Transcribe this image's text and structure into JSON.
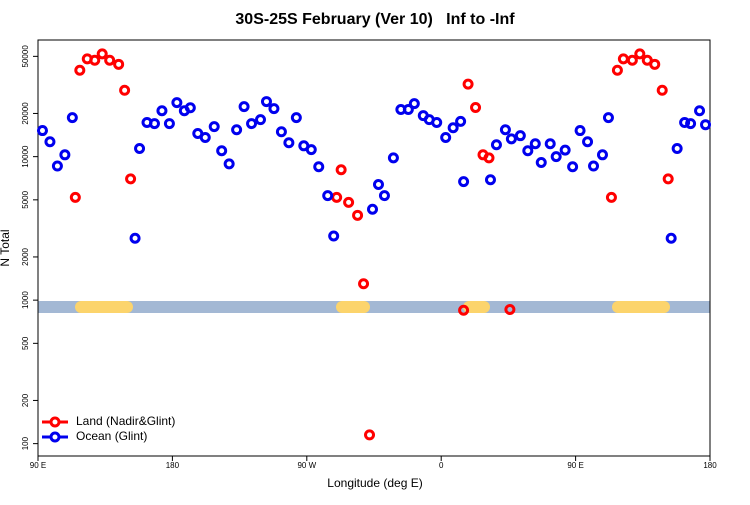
{
  "chart_data": {
    "type": "scatter",
    "title": "30S-25S February (Ver 10)   Inf to -Inf",
    "x_label": "Longitude (deg E)",
    "y_label": "N Total",
    "log_y": true,
    "legend": "bottom-left",
    "xlim": [
      90,
      540
    ],
    "ylim": [
      82,
      65000
    ],
    "xticks": [
      {
        "value": 90,
        "label": "90 E"
      },
      180,
      {
        "value": 270,
        "label": "90 W"
      },
      {
        "value": 360,
        "label": "0"
      },
      {
        "value": 450,
        "label": "90 E"
      },
      {
        "value": 540,
        "label": "180"
      }
    ],
    "yticks": [
      100,
      200,
      500,
      1000,
      2000,
      5000,
      10000,
      20000,
      50000
    ],
    "series": [
      {
        "name": "Land (Nadir&Glint)",
        "color": "#ff0000",
        "x": [
          115,
          118,
          123,
          128,
          133,
          138,
          144,
          148,
          152,
          290,
          293,
          298,
          304,
          308,
          312,
          375,
          378,
          383,
          388,
          392,
          406,
          474,
          478,
          482,
          488,
          493,
          498,
          503,
          508,
          512
        ],
        "values": [
          5200,
          40000,
          48000,
          47000,
          52000,
          47000,
          44000,
          29000,
          7000,
          5200,
          8100,
          4800,
          3900,
          1300,
          115,
          850,
          32000,
          22000,
          10300,
          9800,
          860,
          5200,
          40000,
          48000,
          47000,
          52000,
          47000,
          44000,
          29000,
          7000
        ]
      },
      {
        "name": "Ocean (Glint)",
        "color": "#0000ee",
        "x": [
          93,
          98,
          103,
          108,
          113,
          155,
          158,
          163,
          168,
          173,
          178,
          183,
          188,
          192,
          197,
          202,
          208,
          213,
          218,
          223,
          228,
          233,
          239,
          243,
          248,
          253,
          258,
          263,
          268,
          273,
          278,
          284,
          288,
          314,
          318,
          322,
          328,
          333,
          338,
          342,
          348,
          352,
          357,
          363,
          368,
          373,
          375,
          393,
          397,
          403,
          407,
          413,
          418,
          423,
          427,
          433,
          437,
          443,
          448,
          453,
          458,
          462,
          468,
          472,
          514,
          518,
          523,
          527,
          533,
          537
        ],
        "values": [
          15200,
          12700,
          8600,
          10300,
          18700,
          2700,
          11400,
          17300,
          17000,
          20900,
          17000,
          23800,
          20900,
          21900,
          14500,
          13600,
          16200,
          11000,
          8900,
          15400,
          22300,
          17000,
          18100,
          24200,
          21600,
          14900,
          12500,
          18700,
          11900,
          11200,
          8500,
          5350,
          2800,
          4300,
          6400,
          5350,
          9800,
          21300,
          21300,
          23400,
          19300,
          18100,
          17300,
          13600,
          15900,
          17600,
          6700,
          6900,
          12100,
          15400,
          13300,
          14000,
          11000,
          12300,
          9100,
          12300,
          10000,
          11100,
          8500,
          15200,
          12700,
          8600,
          10300,
          18700,
          2700,
          11400,
          17300,
          17000,
          20900,
          16700
        ]
      }
    ]
  }
}
